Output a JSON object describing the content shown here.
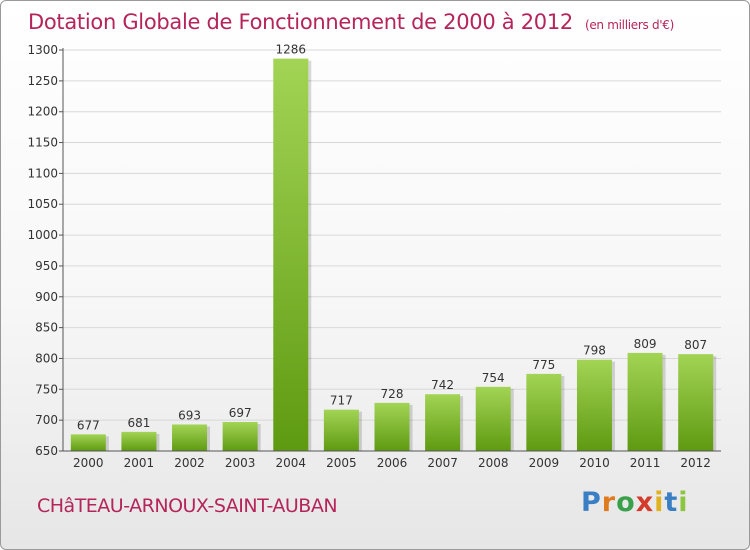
{
  "title": "Dotation Globale de Fonctionnement de 2000 à 2012",
  "subtitle": "(en milliers d'€)",
  "city": "CHâTEAU-ARNOUX-SAINT-AUBAN",
  "logo": {
    "letters": [
      "P",
      "r",
      "o",
      "x",
      "i",
      "t",
      "i"
    ]
  },
  "colors": {
    "title": "#b5245a",
    "bar_light": "#9fd150",
    "bar_dark": "#5f9b12",
    "grid": "#d8d8d8"
  },
  "chart_data": {
    "type": "bar",
    "categories": [
      "2000",
      "2001",
      "2002",
      "2003",
      "2004",
      "2005",
      "2006",
      "2007",
      "2008",
      "2009",
      "2010",
      "2011",
      "2012"
    ],
    "values": [
      677,
      681,
      693,
      697,
      1286,
      717,
      728,
      742,
      754,
      775,
      798,
      809,
      807
    ],
    "title": "Dotation Globale de Fonctionnement de 2000 à 2012",
    "ylim": [
      650,
      1300
    ],
    "yticks": [
      650,
      700,
      750,
      800,
      850,
      900,
      950,
      1000,
      1050,
      1100,
      1150,
      1200,
      1250,
      1300
    ],
    "grid": true,
    "data_labels": true
  }
}
